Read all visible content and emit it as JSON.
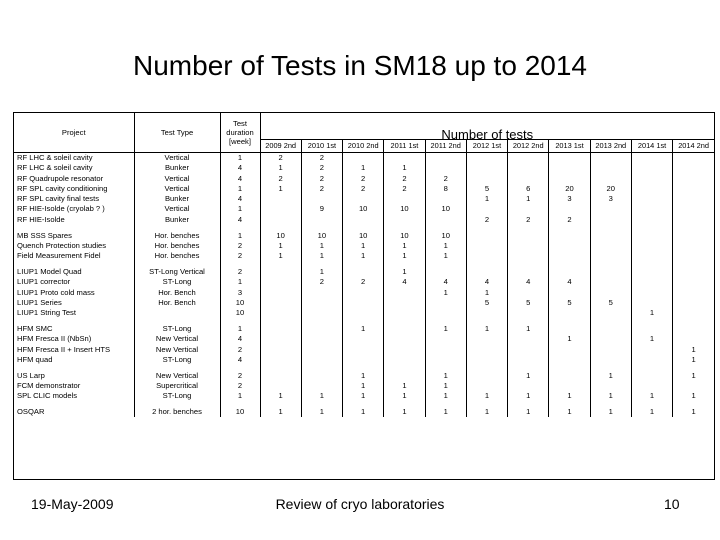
{
  "title": "Number of Tests in SM18 up to 2014",
  "table": {
    "header": {
      "project": "Project",
      "test_type": "Test Type",
      "duration": "Test duration [week]",
      "number_of_tests": "Number of tests",
      "periods": [
        "2009 2nd",
        "2010 1st",
        "2010 2nd",
        "2011 1st",
        "2011 2nd",
        "2012 1st",
        "2012 2nd",
        "2013 1st",
        "2013 2nd",
        "2014 1st",
        "2014 2nd"
      ]
    },
    "groups": [
      [
        {
          "project": "RF LHC & soleil cavity",
          "type": "Vertical",
          "dur": "1",
          "vals": [
            "2",
            "2",
            "",
            "",
            "",
            "",
            "",
            "",
            "",
            "",
            ""
          ]
        },
        {
          "project": "RF LHC & soleil cavity",
          "type": "Bunker",
          "dur": "4",
          "vals": [
            "1",
            "2",
            "1",
            "1",
            "",
            "",
            "",
            "",
            "",
            "",
            ""
          ]
        },
        {
          "project": "RF Quadrupole resonator",
          "type": "Vertical",
          "dur": "4",
          "vals": [
            "2",
            "2",
            "2",
            "2",
            "2",
            "",
            "",
            "",
            "",
            "",
            ""
          ]
        },
        {
          "project": "RF SPL cavity conditioning",
          "type": "Vertical",
          "dur": "1",
          "vals": [
            "1",
            "2",
            "2",
            "2",
            "8",
            "5",
            "6",
            "20",
            "20",
            "",
            ""
          ]
        },
        {
          "project": "RF SPL cavity final tests",
          "type": "Bunker",
          "dur": "4",
          "vals": [
            "",
            "",
            "",
            "",
            "",
            "1",
            "1",
            "3",
            "3",
            "",
            ""
          ]
        },
        {
          "project": "RF HIE-Isolde (cryolab ? )",
          "type": "Vertical",
          "dur": "1",
          "vals": [
            "",
            "9",
            "10",
            "10",
            "10",
            "",
            "",
            "",
            "",
            "",
            ""
          ]
        },
        {
          "project": "RF HIE-Isolde",
          "type": "Bunker",
          "dur": "4",
          "vals": [
            "",
            "",
            "",
            "",
            "",
            "2",
            "2",
            "2",
            "",
            "",
            ""
          ]
        }
      ],
      [
        {
          "project": "MB SSS Spares",
          "type": "Hor. benches",
          "dur": "1",
          "vals": [
            "10",
            "10",
            "10",
            "10",
            "10",
            "",
            "",
            "",
            "",
            "",
            ""
          ]
        },
        {
          "project": "Quench Protection studies",
          "type": "Hor. benches",
          "dur": "2",
          "vals": [
            "1",
            "1",
            "1",
            "1",
            "1",
            "",
            "",
            "",
            "",
            "",
            ""
          ]
        },
        {
          "project": "Field Measurement Fidel",
          "type": "Hor. benches",
          "dur": "2",
          "vals": [
            "1",
            "1",
            "1",
            "1",
            "1",
            "",
            "",
            "",
            "",
            "",
            ""
          ]
        }
      ],
      [
        {
          "project": "LIUP1 Model Quad",
          "type": "ST-Long Vertical",
          "dur": "2",
          "vals": [
            "",
            "1",
            "",
            "1",
            "",
            "",
            "",
            "",
            "",
            "",
            ""
          ]
        },
        {
          "project": "LIUP1 corrector",
          "type": "ST-Long",
          "dur": "1",
          "vals": [
            "",
            "2",
            "2",
            "4",
            "4",
            "4",
            "4",
            "4",
            "",
            "",
            ""
          ]
        },
        {
          "project": "LIUP1 Proto cold mass",
          "type": "Hor. Bench",
          "dur": "3",
          "vals": [
            "",
            "",
            "",
            "",
            "1",
            "1",
            "",
            "",
            "",
            "",
            ""
          ]
        },
        {
          "project": "LIUP1 Series",
          "type": "Hor. Bench",
          "dur": "10",
          "vals": [
            "",
            "",
            "",
            "",
            "",
            "5",
            "5",
            "5",
            "5",
            "",
            ""
          ]
        },
        {
          "project": "LIUP1 String Test",
          "type": "",
          "dur": "10",
          "vals": [
            "",
            "",
            "",
            "",
            "",
            "",
            "",
            "",
            "",
            "1",
            ""
          ]
        }
      ],
      [
        {
          "project": "HFM SMC",
          "type": "ST-Long",
          "dur": "1",
          "vals": [
            "",
            "",
            "1",
            "",
            "1",
            "1",
            "1",
            "",
            "",
            "",
            ""
          ]
        },
        {
          "project": "HFM Fresca II (NbSn)",
          "type": "New Vertical",
          "dur": "4",
          "vals": [
            "",
            "",
            "",
            "",
            "",
            "",
            "",
            "1",
            "",
            "1",
            ""
          ]
        },
        {
          "project": "HFM Fresca II + Insert HTS",
          "type": "New Vertical",
          "dur": "2",
          "vals": [
            "",
            "",
            "",
            "",
            "",
            "",
            "",
            "",
            "",
            "",
            "1"
          ]
        },
        {
          "project": "HFM quad",
          "type": "ST-Long",
          "dur": "4",
          "vals": [
            "",
            "",
            "",
            "",
            "",
            "",
            "",
            "",
            "",
            "",
            "1"
          ]
        }
      ],
      [
        {
          "project": "US Larp",
          "type": "New Vertical",
          "dur": "2",
          "vals": [
            "",
            "",
            "1",
            "",
            "1",
            "",
            "1",
            "",
            "1",
            "",
            "1"
          ]
        },
        {
          "project": "FCM demonstrator",
          "type": "Supercritical",
          "dur": "2",
          "vals": [
            "",
            "",
            "1",
            "1",
            "1",
            "",
            "",
            "",
            "",
            "",
            ""
          ]
        },
        {
          "project": "SPL CLIC models",
          "type": "ST-Long",
          "dur": "1",
          "vals": [
            "1",
            "1",
            "1",
            "1",
            "1",
            "1",
            "1",
            "1",
            "1",
            "1",
            "1"
          ]
        }
      ],
      [
        {
          "project": "OSQAR",
          "type": "2 hor. benches",
          "dur": "10",
          "vals": [
            "1",
            "1",
            "1",
            "1",
            "1",
            "1",
            "1",
            "1",
            "1",
            "1",
            "1"
          ]
        }
      ]
    ]
  },
  "footer": {
    "date": "19-May-2009",
    "center": "Review of cryo laboratories",
    "page": "10"
  }
}
